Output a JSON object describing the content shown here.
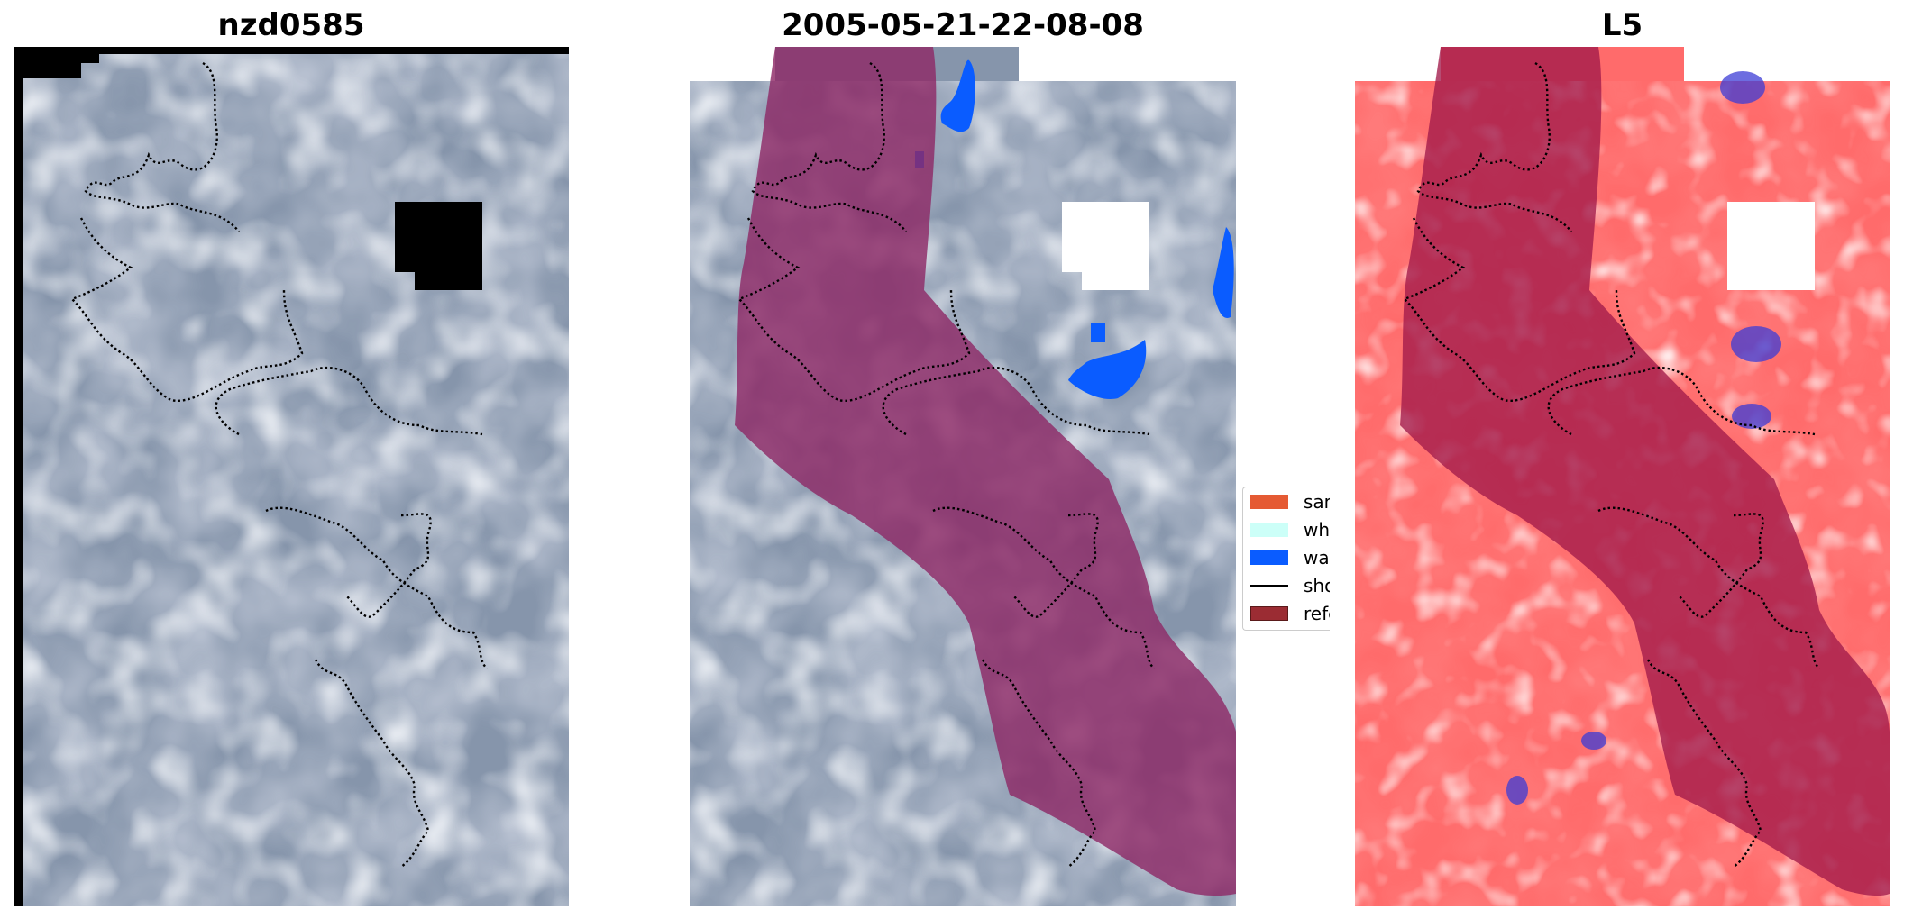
{
  "panels": [
    {
      "title": "nzd0585"
    },
    {
      "title": "2005-05-21-22-08-08"
    },
    {
      "title": "L5"
    }
  ],
  "legend": {
    "items": [
      {
        "label": "sand",
        "kind": "patch",
        "color": "#e55a33"
      },
      {
        "label": "white",
        "kind": "patch",
        "color": "#ccfff8"
      },
      {
        "label": "water",
        "kind": "patch",
        "color": "#0a5cff"
      },
      {
        "label": "shore",
        "kind": "line",
        "color": "#000000"
      },
      {
        "label": "refere",
        "kind": "patch",
        "color": "#9b2c33",
        "edge": "#5a1a1a"
      }
    ]
  },
  "colors": {
    "imagery_blue_gray": "#8493ab",
    "reference_band": "#8e2a66",
    "water_mask": "#0a5cff",
    "nodata": "#000000",
    "heat_red": "#ff3a3a"
  }
}
